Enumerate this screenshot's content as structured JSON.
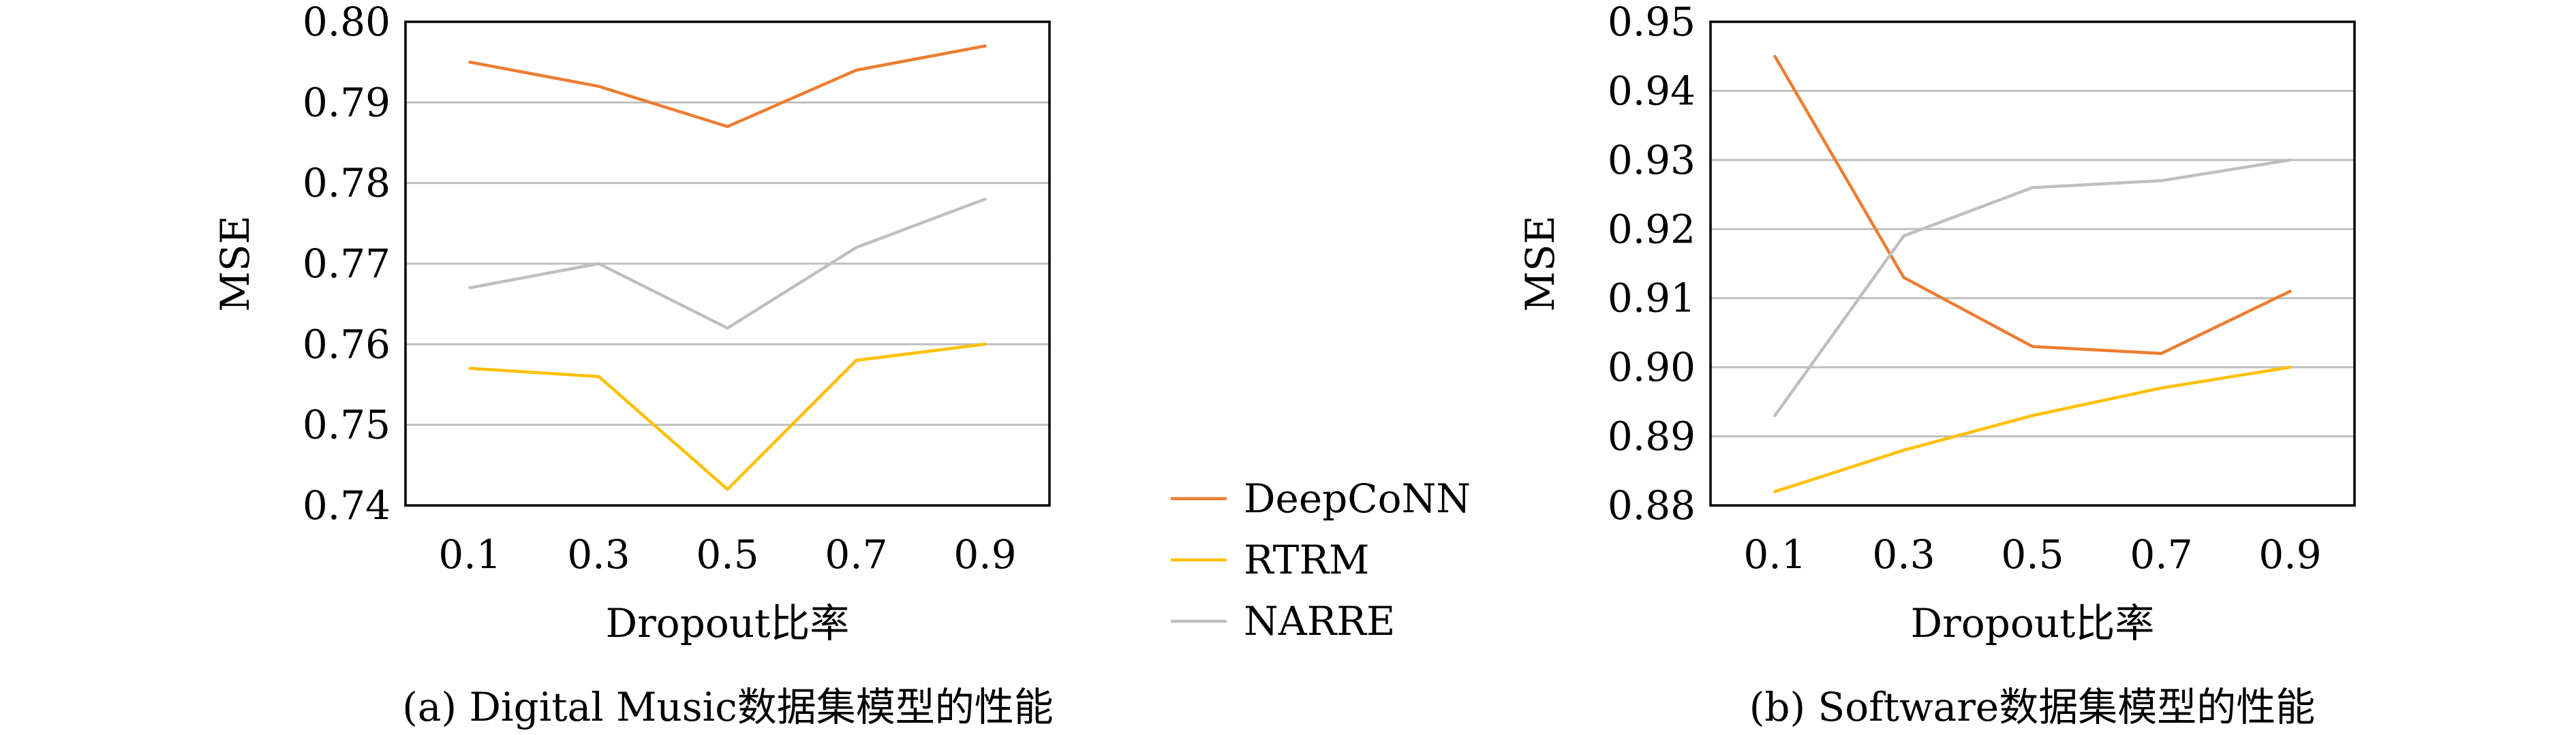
{
  "chart_data": [
    {
      "type": "line",
      "caption": "(a) Digital Music数据集模型的性能",
      "xlabel": "Dropout比率",
      "ylabel": "MSE",
      "categories": [
        "0.1",
        "0.3",
        "0.5",
        "0.7",
        "0.9"
      ],
      "ylim": [
        0.74,
        0.8
      ],
      "yticks": [
        "0.74",
        "0.75",
        "0.76",
        "0.77",
        "0.78",
        "0.79",
        "0.80"
      ],
      "grid": "horizontal",
      "series": [
        {
          "name": "DeepCoNN",
          "values": [
            0.795,
            0.792,
            0.787,
            0.794,
            0.797
          ]
        },
        {
          "name": "RTRM",
          "values": [
            0.757,
            0.756,
            0.742,
            0.758,
            0.76
          ]
        },
        {
          "name": "NARRE",
          "values": [
            0.767,
            0.77,
            0.762,
            0.772,
            0.778
          ]
        }
      ]
    },
    {
      "type": "line",
      "caption": "(b) Software数据集模型的性能",
      "xlabel": "Dropout比率",
      "ylabel": "MSE",
      "categories": [
        "0.1",
        "0.3",
        "0.5",
        "0.7",
        "0.9"
      ],
      "ylim": [
        0.88,
        0.95
      ],
      "yticks": [
        "0.88",
        "0.89",
        "0.90",
        "0.91",
        "0.92",
        "0.93",
        "0.94",
        "0.95"
      ],
      "grid": "horizontal",
      "series": [
        {
          "name": "DeepCoNN",
          "values": [
            0.945,
            0.913,
            0.903,
            0.902,
            0.911
          ]
        },
        {
          "name": "RTRM",
          "values": [
            0.882,
            0.888,
            0.893,
            0.897,
            0.9
          ]
        },
        {
          "name": "NARRE",
          "values": [
            0.893,
            0.919,
            0.926,
            0.927,
            0.93
          ]
        }
      ]
    }
  ],
  "legend": {
    "placement": "center",
    "entries": [
      "DeepCoNN",
      "RTRM",
      "NARRE"
    ]
  },
  "colors": {
    "DeepCoNN": "#ed7d31",
    "RTRM": "#ffc000",
    "NARRE": "#bfbfbf",
    "grid": "#bfbfbf",
    "axis": "#000000"
  }
}
